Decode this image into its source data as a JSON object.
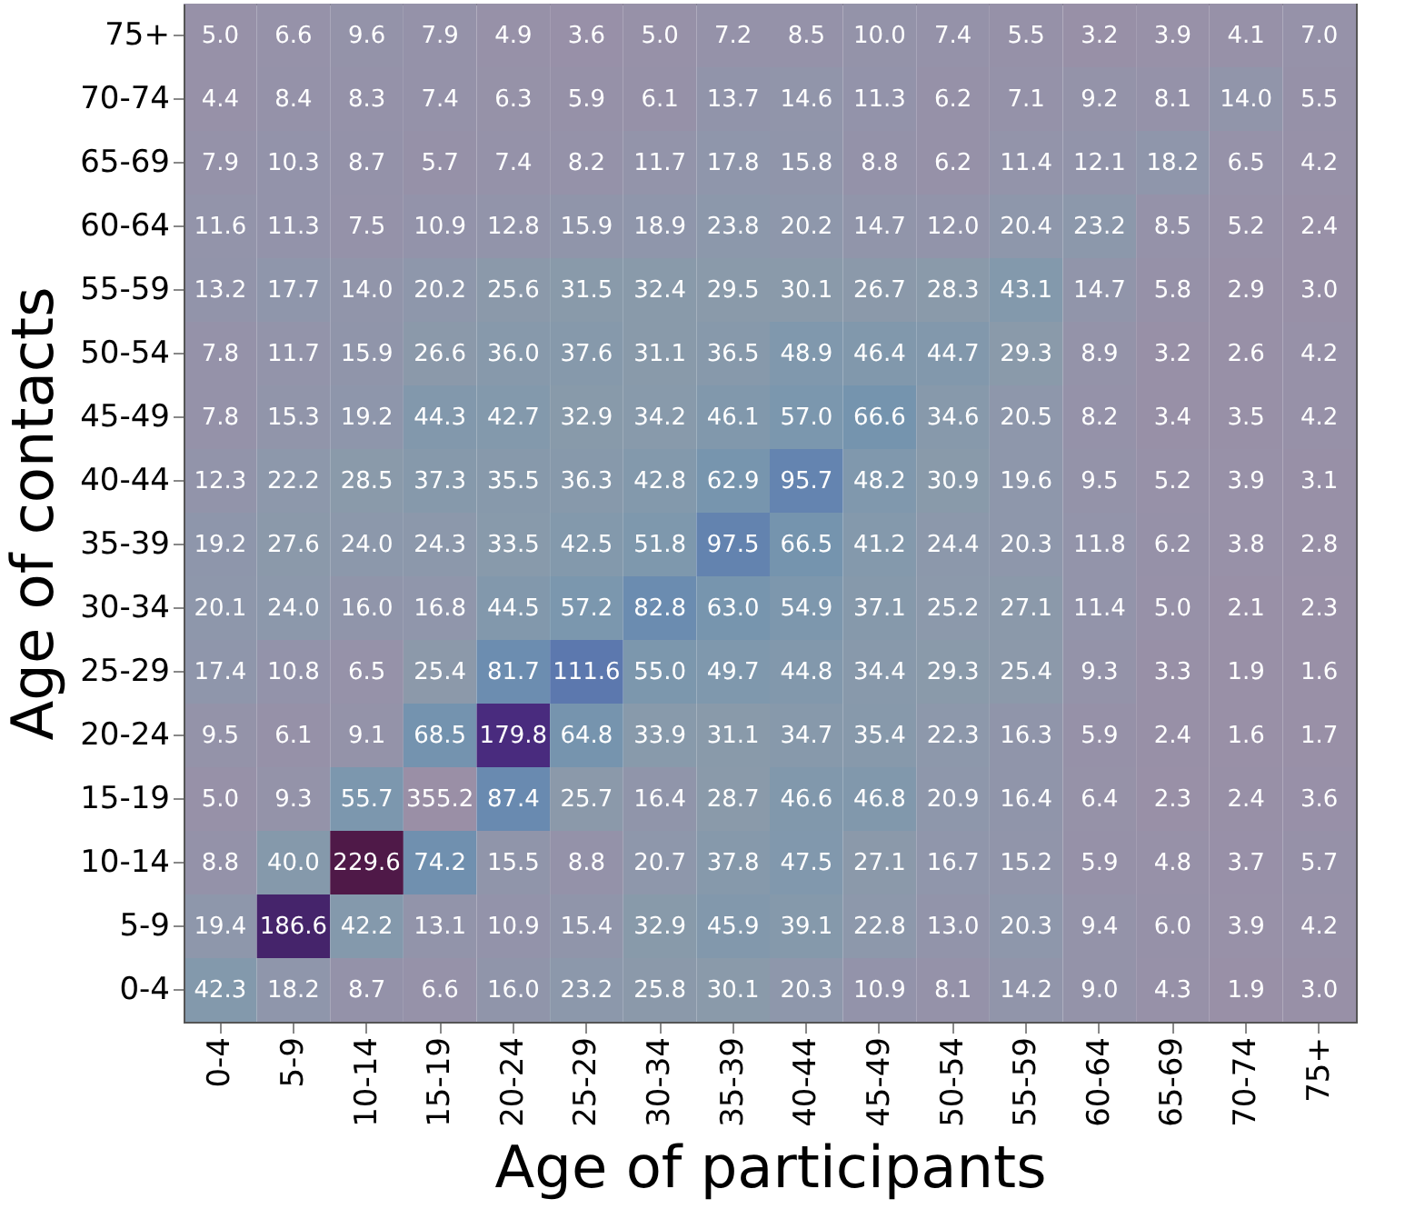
{
  "chart_data": {
    "type": "heatmap",
    "xlabel": "Age of participants",
    "ylabel": "Age of contacts",
    "categories": [
      "0-4",
      "5-9",
      "10-14",
      "15-19",
      "20-24",
      "25-29",
      "30-34",
      "35-39",
      "40-44",
      "45-49",
      "50-54",
      "55-59",
      "60-64",
      "65-69",
      "70-74",
      "75+"
    ],
    "y_categories": [
      "75+",
      "70-74",
      "65-69",
      "60-64",
      "55-59",
      "50-54",
      "45-49",
      "40-44",
      "35-39",
      "30-34",
      "25-29",
      "20-24",
      "15-19",
      "10-14",
      "5-9",
      "0-4"
    ],
    "cells": [
      [
        5.0,
        6.6,
        9.6,
        7.9,
        4.9,
        3.6,
        5.0,
        7.2,
        8.5,
        10.0,
        7.4,
        5.5,
        3.2,
        3.9,
        4.1,
        7.0
      ],
      [
        4.4,
        8.4,
        8.3,
        7.4,
        6.3,
        5.9,
        6.1,
        13.7,
        14.6,
        11.3,
        6.2,
        7.1,
        9.2,
        8.1,
        14.0,
        5.5
      ],
      [
        7.9,
        10.3,
        8.7,
        5.7,
        7.4,
        8.2,
        11.7,
        17.8,
        15.8,
        8.8,
        6.2,
        11.4,
        12.1,
        18.2,
        6.5,
        4.2
      ],
      [
        11.6,
        11.3,
        7.5,
        10.9,
        12.8,
        15.9,
        18.9,
        23.8,
        20.2,
        14.7,
        12.0,
        20.4,
        23.2,
        8.5,
        5.2,
        2.4
      ],
      [
        13.2,
        17.7,
        14.0,
        20.2,
        25.6,
        31.5,
        32.4,
        29.5,
        30.1,
        26.7,
        28.3,
        43.1,
        14.7,
        5.8,
        2.9,
        3.0
      ],
      [
        7.8,
        11.7,
        15.9,
        26.6,
        36.0,
        37.6,
        31.1,
        36.5,
        48.9,
        46.4,
        44.7,
        29.3,
        8.9,
        3.2,
        2.6,
        4.2
      ],
      [
        7.8,
        15.3,
        19.2,
        44.3,
        42.7,
        32.9,
        34.2,
        46.1,
        57.0,
        66.6,
        34.6,
        20.5,
        8.2,
        3.4,
        3.5,
        4.2
      ],
      [
        12.3,
        22.2,
        28.5,
        37.3,
        35.5,
        36.3,
        42.8,
        62.9,
        95.7,
        48.2,
        30.9,
        19.6,
        9.5,
        5.2,
        3.9,
        3.1
      ],
      [
        19.2,
        27.6,
        24.0,
        24.3,
        33.5,
        42.5,
        51.8,
        97.5,
        66.5,
        41.2,
        24.4,
        20.3,
        11.8,
        6.2,
        3.8,
        2.8
      ],
      [
        20.1,
        24.0,
        16.0,
        16.8,
        44.5,
        57.2,
        82.8,
        63.0,
        54.9,
        37.1,
        25.2,
        27.1,
        11.4,
        5.0,
        2.1,
        2.3
      ],
      [
        17.4,
        10.8,
        6.5,
        25.4,
        81.7,
        111.6,
        55.0,
        49.7,
        44.8,
        34.4,
        29.3,
        25.4,
        9.3,
        3.3,
        1.9,
        1.6
      ],
      [
        9.5,
        6.1,
        9.1,
        68.5,
        179.8,
        64.8,
        33.9,
        31.1,
        34.7,
        35.4,
        22.3,
        16.3,
        5.9,
        2.4,
        1.6,
        1.7
      ],
      [
        5.0,
        9.3,
        55.7,
        355.2,
        87.4,
        25.7,
        16.4,
        28.7,
        46.6,
        46.8,
        20.9,
        16.4,
        6.4,
        2.3,
        2.4,
        3.6
      ],
      [
        8.8,
        40.0,
        229.6,
        74.2,
        15.5,
        8.8,
        20.7,
        37.8,
        47.5,
        27.1,
        16.7,
        15.2,
        5.9,
        4.8,
        3.7,
        5.7
      ],
      [
        19.4,
        186.6,
        42.2,
        13.1,
        10.9,
        15.4,
        32.9,
        45.9,
        39.1,
        22.8,
        13.0,
        20.3,
        9.4,
        6.0,
        3.9,
        4.2
      ],
      [
        42.3,
        18.2,
        8.7,
        6.6,
        16.0,
        23.2,
        25.8,
        30.1,
        20.3,
        10.9,
        8.1,
        14.2,
        9.0,
        4.3,
        1.9,
        3.0
      ]
    ],
    "cell_labels": [
      [
        "5.0",
        "6.6",
        "9.6",
        "7.9",
        "4.9",
        "3.6",
        "5.0",
        "7.2",
        "8.5",
        "10.0",
        "7.4",
        "5.5",
        "3.2",
        "3.9",
        "4.1",
        "7.0"
      ],
      [
        "4.4",
        "8.4",
        "8.3",
        "7.4",
        "6.3",
        "5.9",
        "6.1",
        "13.7",
        "14.6",
        "11.3",
        "6.2",
        "7.1",
        "9.2",
        "8.1",
        "14.0",
        "5.5"
      ],
      [
        "7.9",
        "10.3",
        "8.7",
        "5.7",
        "7.4",
        "8.2",
        "11.7",
        "17.8",
        "15.8",
        "8.8",
        "6.2",
        "11.4",
        "12.1",
        "18.2",
        "6.5",
        "4.2"
      ],
      [
        "11.6",
        "11.3",
        "7.5",
        "10.9",
        "12.8",
        "15.9",
        "18.9",
        "23.8",
        "20.2",
        "14.7",
        "12.0",
        "20.4",
        "23.2",
        "8.5",
        "5.2",
        "2.4"
      ],
      [
        "13.2",
        "17.7",
        "14.0",
        "20.2",
        "25.6",
        "31.5",
        "32.4",
        "29.5",
        "30.1",
        "26.7",
        "28.3",
        "43.1",
        "14.7",
        "5.8",
        "2.9",
        "3.0"
      ],
      [
        "7.8",
        "11.7",
        "15.9",
        "26.6",
        "36.0",
        "37.6",
        "31.1",
        "36.5",
        "48.9",
        "46.4",
        "44.7",
        "29.3",
        "8.9",
        "3.2",
        "2.6",
        "4.2"
      ],
      [
        "7.8",
        "15.3",
        "19.2",
        "44.3",
        "42.7",
        "32.9",
        "34.2",
        "46.1",
        "57.0",
        "66.6",
        "34.6",
        "20.5",
        "8.2",
        "3.4",
        "3.5",
        "4.2"
      ],
      [
        "12.3",
        "22.2",
        "28.5",
        "37.3",
        "35.5",
        "36.3",
        "42.8",
        "62.9",
        "95.7",
        "48.2",
        "30.9",
        "19.6",
        "9.5",
        "5.2",
        "3.9",
        "3.1"
      ],
      [
        "19.2",
        "27.6",
        "24.0",
        "24.3",
        "33.5",
        "42.5",
        "51.8",
        "97.5",
        "66.5",
        "41.2",
        "24.4",
        "20.3",
        "11.8",
        "6.2",
        "3.8",
        "2.8"
      ],
      [
        "20.1",
        "24.0",
        "16.0",
        "16.8",
        "44.5",
        "57.2",
        "82.8",
        "63.0",
        "54.9",
        "37.1",
        "25.2",
        "27.1",
        "11.4",
        "5.0",
        "2.1",
        "2.3"
      ],
      [
        "17.4",
        "10.8",
        "6.5",
        "25.4",
        "81.7",
        "111.6",
        "55.0",
        "49.7",
        "44.8",
        "34.4",
        "29.3",
        "25.4",
        "9.3",
        "3.3",
        "1.9",
        "1.6"
      ],
      [
        "9.5",
        "6.1",
        "9.1",
        "68.5",
        "179.8",
        "64.8",
        "33.9",
        "31.1",
        "34.7",
        "35.4",
        "22.3",
        "16.3",
        "5.9",
        "2.4",
        "1.6",
        "1.7"
      ],
      [
        "5.0",
        "9.3",
        "55.7",
        "355.2",
        "87.4",
        "25.7",
        "16.4",
        "28.7",
        "46.6",
        "46.8",
        "20.9",
        "16.4",
        "6.4",
        "2.3",
        "2.4",
        "3.6"
      ],
      [
        "8.8",
        "40.0",
        "229.6",
        "74.2",
        "15.5",
        "8.8",
        "20.7",
        "37.8",
        "47.5",
        "27.1",
        "16.7",
        "15.2",
        "5.9",
        "4.8",
        "3.7",
        "5.7"
      ],
      [
        "19.4",
        "186.6",
        "42.2",
        "13.1",
        "10.9",
        "15.4",
        "32.9",
        "45.9",
        "39.1",
        "22.8",
        "13.0",
        "20.3",
        "9.4",
        "6.0",
        "3.9",
        "4.2"
      ],
      [
        "42.3",
        "18.2",
        "8.7",
        "6.6",
        "16.0",
        "23.2",
        "25.8",
        "30.1",
        "20.3",
        "10.9",
        "8.1",
        "14.2",
        "9.0",
        "4.3",
        "1.9",
        "3.0"
      ]
    ]
  }
}
